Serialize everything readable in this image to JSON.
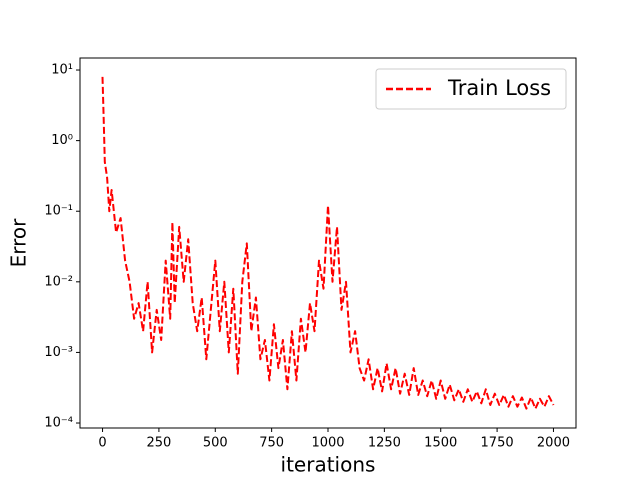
{
  "chart_data": {
    "type": "line",
    "xlabel": "iterations",
    "ylabel": "Error",
    "x": [
      0,
      5,
      10,
      20,
      30,
      40,
      60,
      80,
      100,
      120,
      140,
      160,
      180,
      200,
      220,
      240,
      260,
      280,
      300,
      310,
      320,
      340,
      360,
      380,
      400,
      420,
      440,
      460,
      480,
      500,
      520,
      540,
      560,
      580,
      600,
      620,
      640,
      660,
      680,
      700,
      720,
      740,
      760,
      780,
      800,
      820,
      840,
      860,
      880,
      900,
      920,
      940,
      960,
      980,
      1000,
      1020,
      1040,
      1060,
      1080,
      1100,
      1120,
      1140,
      1160,
      1180,
      1200,
      1220,
      1240,
      1260,
      1280,
      1300,
      1320,
      1340,
      1360,
      1380,
      1400,
      1420,
      1440,
      1460,
      1480,
      1500,
      1520,
      1540,
      1560,
      1580,
      1600,
      1620,
      1640,
      1660,
      1680,
      1700,
      1720,
      1740,
      1760,
      1780,
      1800,
      1820,
      1840,
      1860,
      1880,
      1900,
      1920,
      1940,
      1960,
      1980,
      2000
    ],
    "series": [
      {
        "name": "Train Loss",
        "color": "#ff0000",
        "values": [
          8,
          2,
          0.5,
          0.3,
          0.1,
          0.2,
          0.05,
          0.08,
          0.02,
          0.01,
          0.003,
          0.005,
          0.002,
          0.01,
          0.001,
          0.004,
          0.0015,
          0.02,
          0.003,
          0.07,
          0.005,
          0.06,
          0.01,
          0.04,
          0.005,
          0.002,
          0.006,
          0.0008,
          0.004,
          0.02,
          0.002,
          0.01,
          0.001,
          0.008,
          0.0005,
          0.01,
          0.035,
          0.002,
          0.006,
          0.0008,
          0.0015,
          0.0004,
          0.0025,
          0.0006,
          0.0015,
          0.0003,
          0.002,
          0.0004,
          0.003,
          0.001,
          0.005,
          0.002,
          0.02,
          0.008,
          0.12,
          0.01,
          0.06,
          0.004,
          0.01,
          0.001,
          0.002,
          0.0006,
          0.0004,
          0.0008,
          0.0003,
          0.0006,
          0.00028,
          0.0007,
          0.0003,
          0.0006,
          0.00026,
          0.0005,
          0.00025,
          0.0006,
          0.00025,
          0.0004,
          0.00024,
          0.0004,
          0.00022,
          0.0004,
          0.00022,
          0.00035,
          0.00021,
          0.0003,
          0.0002,
          0.0003,
          0.0002,
          0.00028,
          0.00019,
          0.0003,
          0.00018,
          0.00026,
          0.00018,
          0.00025,
          0.00017,
          0.00024,
          0.00017,
          0.00023,
          0.00016,
          0.00023,
          0.00016,
          0.00022,
          0.00017,
          0.00024,
          0.00018
        ]
      }
    ],
    "xlim": [
      -100,
      2100
    ],
    "xticks": [
      0,
      250,
      500,
      750,
      1000,
      1250,
      1500,
      1750,
      2000
    ],
    "ylim": [
      8.5e-05,
      14.8
    ],
    "ylog": true,
    "yticks": [
      {
        "value": 0.0001,
        "label": "10⁻⁴"
      },
      {
        "value": 0.001,
        "label": "10⁻³"
      },
      {
        "value": 0.01,
        "label": "10⁻²"
      },
      {
        "value": 0.1,
        "label": "10⁻¹"
      },
      {
        "value": 1,
        "label": "10⁰"
      },
      {
        "value": 10,
        "label": "10¹"
      }
    ],
    "legend": "upper right",
    "grid": false
  }
}
